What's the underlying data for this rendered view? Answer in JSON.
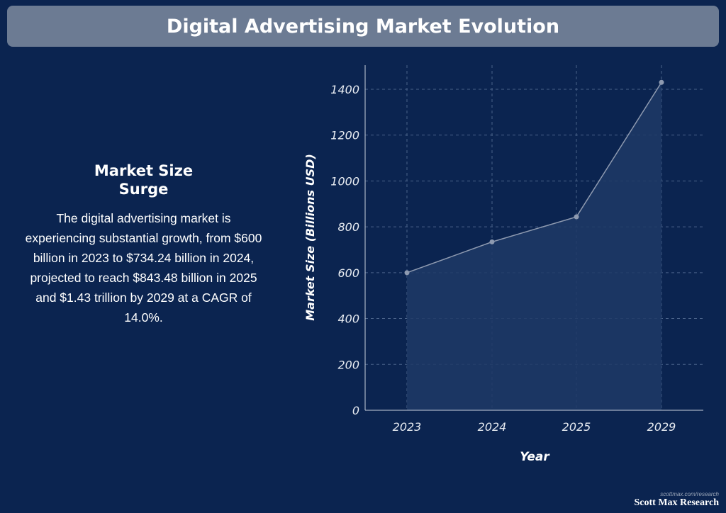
{
  "header": {
    "title": "Digital Advertising Market Evolution"
  },
  "summary": {
    "heading": "Market Size\nSurge",
    "body": "The digital advertising market is experiencing substantial growth, from $600 billion in 2023 to $734.24 billion in 2024, projected to reach $843.48 billion in 2025 and $1.43 trillion by 2029 at a CAGR of 14.0%."
  },
  "branding": {
    "url": "scottmax.com/research",
    "name": "Scott Max Research"
  },
  "colors": {
    "background": "#0b2450",
    "title_bar": "#6c7b93",
    "line": "#8e9ab0",
    "fill": "#1f3a66",
    "grid": "#4a6289"
  },
  "chart_data": {
    "type": "area",
    "categories": [
      "2023",
      "2024",
      "2025",
      "2029"
    ],
    "values": [
      600,
      734.24,
      843.48,
      1430
    ],
    "xlabel": "Year",
    "ylabel": "Market Size (Billions USD)",
    "ylim": [
      0,
      1500
    ],
    "yticks": [
      "0",
      "200",
      "400",
      "600",
      "800",
      "1000",
      "1200",
      "1400"
    ],
    "grid": true
  }
}
